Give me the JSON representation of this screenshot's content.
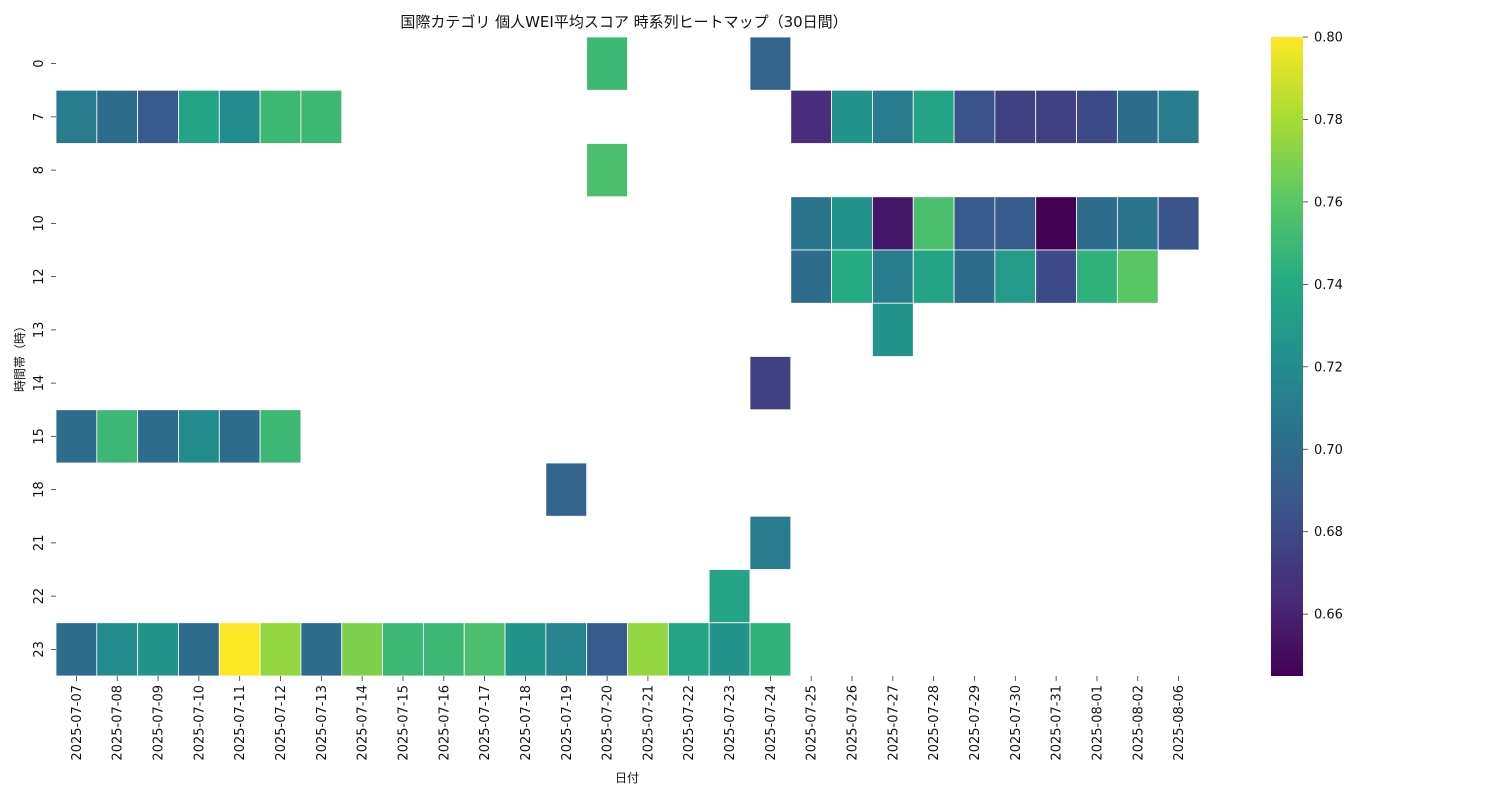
{
  "chart_data": {
    "type": "heatmap",
    "title": "国際カテゴリ 個人WEI平均スコア 時系列ヒートマップ（30日間）",
    "xlabel": "日付",
    "ylabel": "時間帯（時）",
    "x_categories": [
      "2025-07-07",
      "2025-07-08",
      "2025-07-09",
      "2025-07-10",
      "2025-07-11",
      "2025-07-12",
      "2025-07-13",
      "2025-07-14",
      "2025-07-15",
      "2025-07-16",
      "2025-07-17",
      "2025-07-18",
      "2025-07-19",
      "2025-07-20",
      "2025-07-21",
      "2025-07-22",
      "2025-07-23",
      "2025-07-24",
      "2025-07-25",
      "2025-07-26",
      "2025-07-27",
      "2025-07-28",
      "2025-07-29",
      "2025-07-30",
      "2025-07-31",
      "2025-08-01",
      "2025-08-02",
      "2025-08-06"
    ],
    "y_categories": [
      "0",
      "7",
      "8",
      "10",
      "12",
      "13",
      "14",
      "15",
      "18",
      "21",
      "22",
      "23"
    ],
    "values": [
      [
        null,
        null,
        null,
        null,
        null,
        null,
        null,
        null,
        null,
        null,
        null,
        null,
        null,
        0.75,
        null,
        null,
        null,
        0.695,
        null,
        null,
        null,
        null,
        null,
        null,
        null,
        null,
        null,
        null
      ],
      [
        0.71,
        0.7,
        0.69,
        0.735,
        0.72,
        0.75,
        0.75,
        null,
        null,
        null,
        null,
        null,
        null,
        null,
        null,
        null,
        null,
        null,
        0.665,
        0.725,
        0.71,
        0.735,
        0.685,
        0.675,
        0.675,
        0.68,
        0.7,
        0.71
      ],
      [
        null,
        null,
        null,
        null,
        null,
        null,
        null,
        null,
        null,
        null,
        null,
        null,
        null,
        0.755,
        null,
        null,
        null,
        null,
        null,
        null,
        null,
        null,
        null,
        null,
        null,
        null,
        null,
        null
      ],
      [
        null,
        null,
        null,
        null,
        null,
        null,
        null,
        null,
        null,
        null,
        null,
        null,
        null,
        null,
        null,
        null,
        null,
        null,
        0.705,
        0.725,
        0.655,
        0.755,
        0.69,
        0.69,
        0.645,
        0.7,
        0.705,
        0.685
      ],
      [
        null,
        null,
        null,
        null,
        null,
        null,
        null,
        null,
        null,
        null,
        null,
        null,
        null,
        null,
        null,
        null,
        null,
        null,
        0.7,
        0.74,
        0.71,
        0.735,
        0.7,
        0.73,
        0.68,
        0.745,
        0.76,
        null
      ],
      [
        null,
        null,
        null,
        null,
        null,
        null,
        null,
        null,
        null,
        null,
        null,
        null,
        null,
        null,
        null,
        null,
        null,
        null,
        null,
        null,
        0.725,
        null,
        null,
        null,
        null,
        null,
        null,
        null
      ],
      [
        null,
        null,
        null,
        null,
        null,
        null,
        null,
        null,
        null,
        null,
        null,
        null,
        null,
        null,
        null,
        null,
        null,
        0.675,
        null,
        null,
        null,
        null,
        null,
        null,
        null,
        null,
        null,
        null
      ],
      [
        0.7,
        0.75,
        0.7,
        0.72,
        0.7,
        0.75,
        null,
        null,
        null,
        null,
        null,
        null,
        null,
        null,
        null,
        null,
        null,
        null,
        null,
        null,
        null,
        null,
        null,
        null,
        null,
        null,
        null,
        null
      ],
      [
        null,
        null,
        null,
        null,
        null,
        null,
        null,
        null,
        null,
        null,
        null,
        null,
        0.695,
        null,
        null,
        null,
        null,
        null,
        null,
        null,
        null,
        null,
        null,
        null,
        null,
        null,
        null,
        null
      ],
      [
        null,
        null,
        null,
        null,
        null,
        null,
        null,
        null,
        null,
        null,
        null,
        null,
        null,
        null,
        null,
        null,
        null,
        0.71,
        null,
        null,
        null,
        null,
        null,
        null,
        null,
        null,
        null,
        null
      ],
      [
        null,
        null,
        null,
        null,
        null,
        null,
        null,
        null,
        null,
        null,
        null,
        null,
        null,
        null,
        null,
        null,
        0.735,
        null,
        null,
        null,
        null,
        null,
        null,
        null,
        null,
        null,
        null,
        null
      ],
      [
        0.7,
        0.72,
        0.725,
        0.7,
        0.8,
        0.775,
        0.7,
        0.77,
        0.75,
        0.75,
        0.755,
        0.725,
        0.715,
        0.69,
        0.775,
        0.735,
        0.725,
        0.745,
        null,
        null,
        null,
        null,
        null,
        null,
        null,
        null,
        null,
        null
      ]
    ],
    "colormap": "viridis",
    "colorbar": {
      "vmin": 0.645,
      "vmax": 0.8,
      "ticks": [
        "0.66",
        "0.68",
        "0.70",
        "0.72",
        "0.74",
        "0.76",
        "0.78",
        "0.80"
      ]
    },
    "grid": false,
    "legend": "colorbar-right"
  }
}
